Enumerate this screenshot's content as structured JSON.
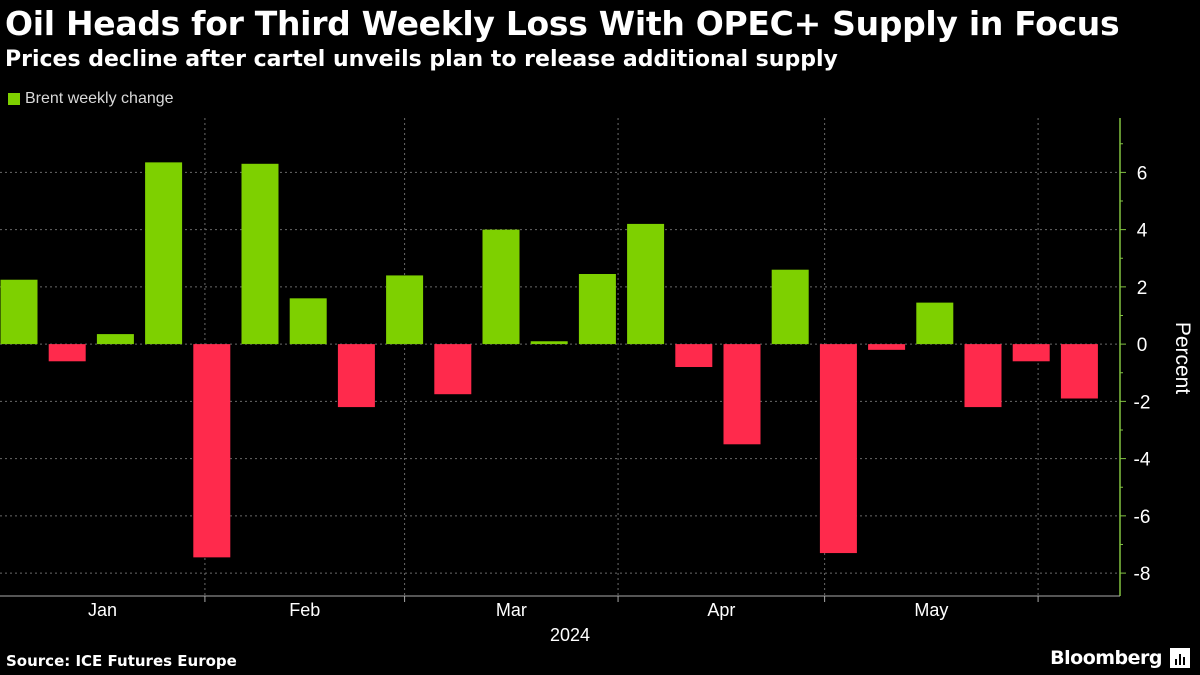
{
  "header": {
    "title": "Oil Heads for Third Weekly Loss With OPEC+ Supply in Focus",
    "subtitle": "Prices decline after cartel unveils plan to release additional supply"
  },
  "footer": {
    "source": "Source: ICE Futures Europe",
    "brand": "Bloomberg"
  },
  "colors": {
    "positive": "#7ed000",
    "negative": "#ff2a4c",
    "background": "#000000",
    "grid": "#6a6a6a",
    "axis": "#82c341"
  },
  "chart_data": {
    "type": "bar",
    "title": "Oil Heads for Third Weekly Loss With OPEC+ Supply in Focus",
    "subtitle": "Prices decline after cartel unveils plan to release additional supply",
    "series": [
      {
        "name": "Brent weekly change",
        "week_ending": [
          "2024-01-05",
          "2024-01-12",
          "2024-01-19",
          "2024-01-26",
          "2024-02-02",
          "2024-02-09",
          "2024-02-16",
          "2024-02-23",
          "2024-03-01",
          "2024-03-08",
          "2024-03-15",
          "2024-03-22",
          "2024-03-28",
          "2024-04-05",
          "2024-04-12",
          "2024-04-19",
          "2024-04-26",
          "2024-05-03",
          "2024-05-10",
          "2024-05-17",
          "2024-05-24",
          "2024-05-31",
          "2024-06-07"
        ],
        "values": [
          2.25,
          -0.6,
          0.35,
          6.35,
          -7.45,
          6.3,
          1.6,
          -2.2,
          2.4,
          -1.75,
          4.0,
          0.1,
          2.45,
          4.2,
          -0.8,
          -3.5,
          2.6,
          -7.3,
          -0.2,
          1.45,
          -2.2,
          -0.6,
          -1.9
        ]
      }
    ],
    "x_labels": [
      "Jan",
      "Feb",
      "Mar",
      "Apr",
      "May"
    ],
    "x_year": "2024",
    "ylabel": "Percent",
    "ylim": [
      -8.8,
      7.9
    ],
    "yticks": [
      6,
      4,
      2,
      0,
      -2,
      -4,
      -6,
      -8
    ],
    "legend": {
      "position": "top-left",
      "label": "Brent weekly change"
    },
    "grid": true
  }
}
